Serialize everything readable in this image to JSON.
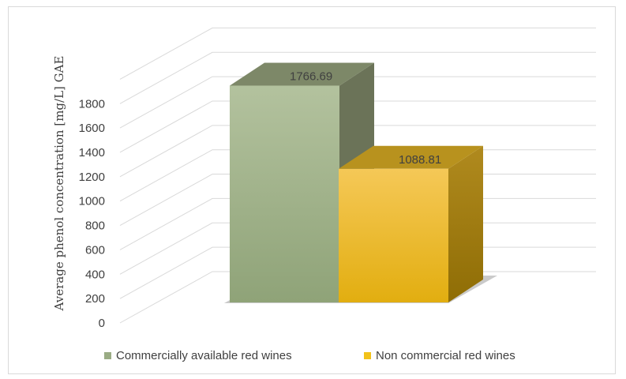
{
  "chart_data": {
    "type": "bar",
    "style": "3d-column",
    "categories": [
      ""
    ],
    "series": [
      {
        "name": "Commercially available red wines",
        "values": [
          1766.69
        ],
        "color": "#9aac84",
        "label": "1766.69"
      },
      {
        "name": "Non commercial red wines",
        "values": [
          1088.81
        ],
        "color": "#f2c21a",
        "label": "1088.81"
      }
    ],
    "ylabel": "Average phenol concentration [mg/L] GAE",
    "ylim": [
      0,
      2000
    ],
    "yticks": [
      0,
      200,
      400,
      600,
      800,
      1000,
      1200,
      1400,
      1600,
      1800
    ],
    "ytick_labels": [
      "0",
      "200",
      "400",
      "600",
      "800",
      "1000",
      "1200",
      "1400",
      "1600",
      "1800"
    ],
    "grid": true,
    "legend_position": "bottom"
  }
}
